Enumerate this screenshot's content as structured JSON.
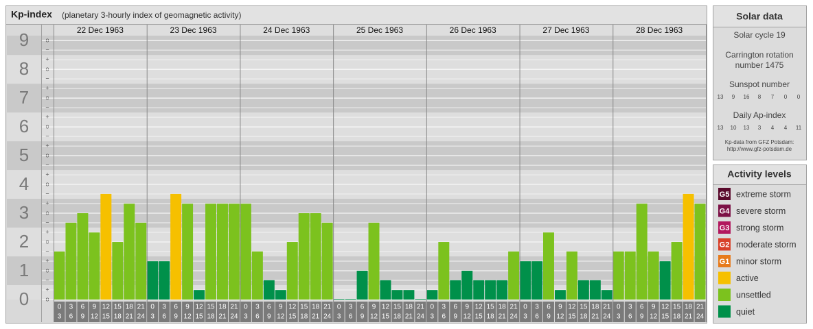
{
  "chart_data": {
    "type": "bar",
    "title": "Kp-index",
    "subtitle": "(planetary 3-hourly index of geomagnetic activity)",
    "ylim": [
      0,
      9.17
    ],
    "yticks": [
      0,
      1,
      2,
      3,
      4,
      5,
      6,
      7,
      8,
      9
    ],
    "sublevel_labels": [
      "o",
      "+",
      "−"
    ],
    "interval_starts": [
      0,
      3,
      6,
      9,
      12,
      15,
      18,
      21
    ],
    "interval_ends": [
      3,
      6,
      9,
      12,
      15,
      18,
      21,
      24
    ],
    "days": [
      {
        "date": "22 Dec 1963",
        "values": [
          1.67,
          2.67,
          3,
          2.33,
          3.67,
          2,
          3.33,
          2.67
        ],
        "colors": [
          "#7cc21e",
          "#7cc21e",
          "#7cc21e",
          "#7cc21e",
          "#f6c000",
          "#7cc21e",
          "#7cc21e",
          "#7cc21e"
        ]
      },
      {
        "date": "23 Dec 1963",
        "values": [
          1.33,
          1.33,
          3.67,
          3.33,
          0.33,
          3.33,
          3.33,
          3.33
        ],
        "colors": [
          "#00904a",
          "#00904a",
          "#f6c000",
          "#7cc21e",
          "#00904a",
          "#7cc21e",
          "#7cc21e",
          "#7cc21e"
        ]
      },
      {
        "date": "24 Dec 1963",
        "values": [
          3.33,
          1.67,
          0.67,
          0.33,
          2,
          3,
          3,
          2.67
        ],
        "colors": [
          "#7cc21e",
          "#7cc21e",
          "#00904a",
          "#00904a",
          "#7cc21e",
          "#7cc21e",
          "#7cc21e",
          "#7cc21e"
        ]
      },
      {
        "date": "25 Dec 1963",
        "values": [
          0,
          0,
          1,
          2.67,
          0.67,
          0.33,
          0.33,
          0
        ],
        "colors": [
          "#00904a",
          "#00904a",
          "#00904a",
          "#7cc21e",
          "#00904a",
          "#00904a",
          "#00904a",
          "#00904a"
        ]
      },
      {
        "date": "26 Dec 1963",
        "values": [
          0.33,
          2,
          0.67,
          1,
          0.67,
          0.67,
          0.67,
          1.67
        ],
        "colors": [
          "#00904a",
          "#7cc21e",
          "#00904a",
          "#00904a",
          "#00904a",
          "#00904a",
          "#00904a",
          "#7cc21e"
        ]
      },
      {
        "date": "27 Dec 1963",
        "values": [
          1.33,
          1.33,
          2.33,
          0.33,
          1.67,
          0.67,
          0.67,
          0.33
        ],
        "colors": [
          "#00904a",
          "#00904a",
          "#7cc21e",
          "#00904a",
          "#7cc21e",
          "#00904a",
          "#00904a",
          "#00904a"
        ]
      },
      {
        "date": "28 Dec 1963",
        "values": [
          1.67,
          1.67,
          3.33,
          1.67,
          1.33,
          2,
          3.67,
          3.33
        ],
        "colors": [
          "#7cc21e",
          "#7cc21e",
          "#7cc21e",
          "#7cc21e",
          "#00904a",
          "#7cc21e",
          "#f6c000",
          "#7cc21e"
        ]
      }
    ]
  },
  "solar_data": {
    "title": "Solar data",
    "solar_cycle": "Solar cycle 19",
    "carrington": [
      "Carrington rotation",
      "number 1475"
    ],
    "sunspot_title": "Sunspot number",
    "sunspot_numbers": [
      13,
      9,
      16,
      8,
      7,
      0,
      0
    ],
    "ap_title": "Daily Ap-index",
    "ap_values": [
      13,
      10,
      13,
      3,
      4,
      4,
      11
    ],
    "source": [
      "Kp-data from GFZ Potsdam:",
      "http://www.gfz-potsdam.de"
    ]
  },
  "activity_levels": {
    "title": "Activity levels",
    "items": [
      {
        "badge": "G5",
        "label": "extreme storm",
        "color": "#5a0a2c"
      },
      {
        "badge": "G4",
        "label": "severe storm",
        "color": "#7c1146"
      },
      {
        "badge": "G3",
        "label": "strong storm",
        "color": "#b2185e"
      },
      {
        "badge": "G2",
        "label": "moderate storm",
        "color": "#d8412a"
      },
      {
        "badge": "G1",
        "label": "minor storm",
        "color": "#e77b1c"
      },
      {
        "label": "active",
        "color": "#f6c000"
      },
      {
        "label": "unsettled",
        "color": "#7cc21e"
      },
      {
        "label": "quiet",
        "color": "#00904a"
      }
    ]
  }
}
